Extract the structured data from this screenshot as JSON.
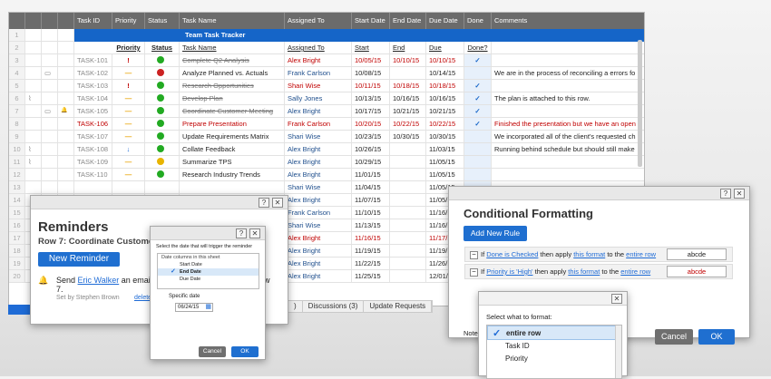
{
  "sheet": {
    "columns": [
      "",
      "",
      "",
      "",
      "Task ID",
      "Priority",
      "Status",
      "Task Name",
      "Assigned To",
      "Start Date",
      "End Date",
      "Due Date",
      "Done",
      "Comments"
    ],
    "title": "Team Task Tracker",
    "subheaders": [
      "Priority",
      "Status",
      "Task Name",
      "Assigned To",
      "Start",
      "End",
      "Due",
      "Done?"
    ],
    "rows": [
      {
        "num": "1"
      },
      {
        "num": "2"
      },
      {
        "num": "3",
        "id": "TASK-101",
        "pri": "!",
        "status": "#22aa22",
        "task": "Complete Q2 Analysis",
        "assigned": "Alex Bright",
        "start": "10/05/15",
        "end": "10/10/15",
        "due": "10/10/15",
        "done": "✓",
        "comment": "",
        "style": "strike",
        "acolor": "red",
        "dcolor": "red"
      },
      {
        "num": "4",
        "id": "TASK-102",
        "pri": "—",
        "status": "#cc2222",
        "task": "Analyze Planned vs. Actuals",
        "assigned": "Frank Carlson",
        "start": "10/08/15",
        "end": "",
        "due": "10/14/15",
        "done": "",
        "comment": "We are in the process of reconciling a errors fo",
        "style": "",
        "acolor": "blue",
        "dcolor": ""
      },
      {
        "num": "5",
        "id": "TASK-103",
        "pri": "!",
        "status": "#22aa22",
        "task": "Research Opportunities",
        "assigned": "Shari Wise",
        "start": "10/11/15",
        "end": "10/18/15",
        "due": "10/18/15",
        "done": "✓",
        "comment": "",
        "style": "strike",
        "acolor": "red",
        "dcolor": "red"
      },
      {
        "num": "6",
        "id": "TASK-104",
        "pri": "—",
        "status": "#22aa22",
        "task": "Develop Plan",
        "assigned": "Sally Jones",
        "start": "10/13/15",
        "end": "10/16/15",
        "due": "10/16/15",
        "done": "✓",
        "comment": "The plan is attached to this row.",
        "style": "strike",
        "acolor": "blue",
        "dcolor": ""
      },
      {
        "num": "7",
        "id": "TASK-105",
        "pri": "—",
        "status": "#22aa22",
        "task": "Coordinate Customer Meeting",
        "assigned": "Alex Bright",
        "start": "10/17/15",
        "end": "10/21/15",
        "due": "10/21/15",
        "done": "✓",
        "comment": "",
        "style": "strike",
        "acolor": "blue",
        "dcolor": ""
      },
      {
        "num": "8",
        "id": "TASK-106",
        "pri": "—",
        "status": "#22aa22",
        "task": "Prepare Presentation",
        "assigned": "Frank Carlson",
        "start": "10/20/15",
        "end": "10/22/15",
        "due": "10/22/15",
        "done": "✓",
        "comment": "Finished the presentation but we have an open",
        "style": "redrow",
        "acolor": "red",
        "dcolor": "red"
      },
      {
        "num": "9",
        "id": "TASK-107",
        "pri": "—",
        "status": "#22aa22",
        "task": "Update Requirements Matrix",
        "assigned": "Shari Wise",
        "start": "10/23/15",
        "end": "10/30/15",
        "due": "10/30/15",
        "done": "",
        "comment": "We incorporated all of the client's requested ch",
        "style": "",
        "acolor": "blue",
        "dcolor": ""
      },
      {
        "num": "10",
        "id": "TASK-108",
        "pri": "↓",
        "status": "#22aa22",
        "task": "Collate Feedback",
        "assigned": "Alex Bright",
        "start": "10/26/15",
        "end": "",
        "due": "11/03/15",
        "done": "",
        "comment": "Running behind schedule but should still make",
        "style": "",
        "acolor": "blue",
        "dcolor": ""
      },
      {
        "num": "11",
        "id": "TASK-109",
        "pri": "—",
        "status": "#e8b400",
        "task": "Summarize TPS",
        "assigned": "Alex Bright",
        "start": "10/29/15",
        "end": "",
        "due": "11/05/15",
        "done": "",
        "comment": "",
        "style": "",
        "acolor": "blue",
        "dcolor": ""
      },
      {
        "num": "12",
        "id": "TASK-110",
        "pri": "—",
        "status": "#22aa22",
        "task": "Research Industry Trends",
        "assigned": "Alex Bright",
        "start": "11/01/15",
        "end": "",
        "due": "11/05/15",
        "done": "",
        "comment": "",
        "style": "",
        "acolor": "blue",
        "dcolor": ""
      },
      {
        "num": "13",
        "id": "",
        "pri": "",
        "status": "",
        "task": "",
        "assigned": "Shari Wise",
        "start": "11/04/15",
        "end": "",
        "due": "11/05/15",
        "done": "",
        "comment": "",
        "style": "",
        "acolor": "blue",
        "dcolor": ""
      },
      {
        "num": "14",
        "id": "",
        "pri": "",
        "status": "",
        "task": "",
        "assigned": "Alex Bright",
        "start": "11/07/15",
        "end": "",
        "due": "11/05/15",
        "done": "",
        "comment": "",
        "style": "",
        "acolor": "blue",
        "dcolor": ""
      },
      {
        "num": "15",
        "id": "",
        "pri": "",
        "status": "",
        "task": "",
        "assigned": "Frank Carlson",
        "start": "11/10/15",
        "end": "",
        "due": "11/16/15",
        "done": "",
        "comment": "",
        "style": "",
        "acolor": "blue",
        "dcolor": ""
      },
      {
        "num": "16",
        "id": "",
        "pri": "",
        "status": "",
        "task": "",
        "assigned": "Shari Wise",
        "start": "11/13/15",
        "end": "",
        "due": "11/16/15",
        "done": "",
        "comment": "",
        "style": "",
        "acolor": "blue",
        "dcolor": ""
      },
      {
        "num": "17",
        "id": "",
        "pri": "",
        "status": "",
        "task": "",
        "assigned": "Alex Bright",
        "start": "11/16/15",
        "end": "",
        "due": "11/17/15",
        "done": "",
        "comment": "",
        "style": "redrow",
        "acolor": "red",
        "dcolor": "red"
      },
      {
        "num": "18",
        "id": "",
        "pri": "",
        "status": "",
        "task": "",
        "assigned": "Alex Bright",
        "start": "11/19/15",
        "end": "",
        "due": "11/19/15",
        "done": "",
        "comment": "",
        "style": "",
        "acolor": "blue",
        "dcolor": ""
      },
      {
        "num": "19",
        "id": "",
        "pri": "",
        "status": "",
        "task": "",
        "assigned": "Alex Bright",
        "start": "11/22/15",
        "end": "",
        "due": "11/26/15",
        "done": "",
        "comment": "",
        "style": "",
        "acolor": "blue",
        "dcolor": ""
      },
      {
        "num": "20",
        "id": "",
        "pri": "",
        "status": "",
        "task": "",
        "assigned": "Alex Bright",
        "start": "11/25/15",
        "end": "",
        "due": "12/01/15",
        "done": "",
        "comment": "",
        "style": "",
        "acolor": "blue",
        "dcolor": ""
      }
    ],
    "tabs": [
      ")",
      "Discussions (3)",
      "Update Requests"
    ]
  },
  "reminders": {
    "title": "Reminders",
    "subtitle": "Row 7: Coordinate Customer M",
    "new_button": "New Reminder",
    "send_prefix": "Send",
    "send_user": "Eric Walker",
    "send_rest": "an email",
    "send_tail_right": "w",
    "send_line2": "7.",
    "set_by": "Set by Stephen Brown",
    "delete_link": "delete"
  },
  "date_popup": {
    "heading": "Select the date that will trigger the reminder",
    "group_label": "Date columns in this sheet",
    "options": [
      "Start Date",
      "End Date",
      "Due Date"
    ],
    "selected_index": 1,
    "specific_label": "Specific date",
    "specific_value": "06/24/15",
    "cancel": "Cancel",
    "ok": "OK"
  },
  "conditional": {
    "title": "Conditional Formatting",
    "add_rule": "Add New Rule",
    "rules": [
      {
        "if": "If",
        "cond": "Done is Checked",
        "then": "then apply",
        "fmt": "this format",
        "to": "to the",
        "target": "entire row",
        "sample": "abcde",
        "sample_color": "#222"
      },
      {
        "if": "If",
        "cond": "Priority is 'High'",
        "then": "then apply",
        "fmt": "this format",
        "to": "to the",
        "target": "entire row",
        "sample": "abcde",
        "sample_color": "#c00000"
      }
    ],
    "note": "Note",
    "cancel": "Cancel",
    "ok": "OK"
  },
  "format_popup": {
    "heading": "Select what to format:",
    "options": [
      "entire row",
      "Task ID",
      "Priority"
    ],
    "selected_index": 0
  },
  "icons": [
    "help-icon",
    "close-icon",
    "bell-icon",
    "checkmark-icon",
    "calendar-icon",
    "comment-icon",
    "attachment-icon"
  ]
}
